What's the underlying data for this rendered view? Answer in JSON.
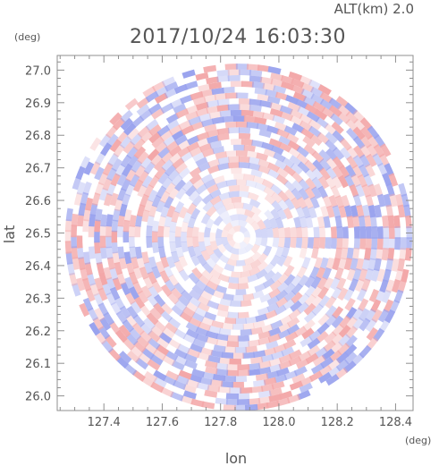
{
  "chart_data": {
    "type": "heatmap",
    "title": "2017/10/24 16:03:30",
    "altitude_label": "ALT(km) 2.0",
    "xlabel": "lon",
    "ylabel": "lat",
    "x_unit": "(deg)",
    "y_unit": "(deg)",
    "xlim": [
      127.24,
      128.46
    ],
    "ylim": [
      25.955,
      27.045
    ],
    "x_ticks": [
      127.4,
      127.6,
      127.8,
      128.0,
      128.2,
      128.4
    ],
    "x_tick_labels": [
      "127.4",
      "127.6",
      "127.8",
      "128.0",
      "128.2",
      "128.4"
    ],
    "y_ticks": [
      26.0,
      26.1,
      26.2,
      26.3,
      26.4,
      26.5,
      26.6,
      26.7,
      26.8,
      26.9,
      27.0
    ],
    "y_tick_labels": [
      "26.0",
      "26.1",
      "26.2",
      "26.3",
      "26.4",
      "26.5",
      "26.6",
      "26.7",
      "26.8",
      "26.9",
      "27.0"
    ],
    "radar_center": {
      "lon": 127.862,
      "lat": 26.487
    },
    "radar_radius_lat_deg": 0.533,
    "colormap": {
      "negative": "#9aa3ee",
      "zero": "#ffffff",
      "positive": "#f3a7a8"
    },
    "grid": false,
    "legend": "none"
  }
}
